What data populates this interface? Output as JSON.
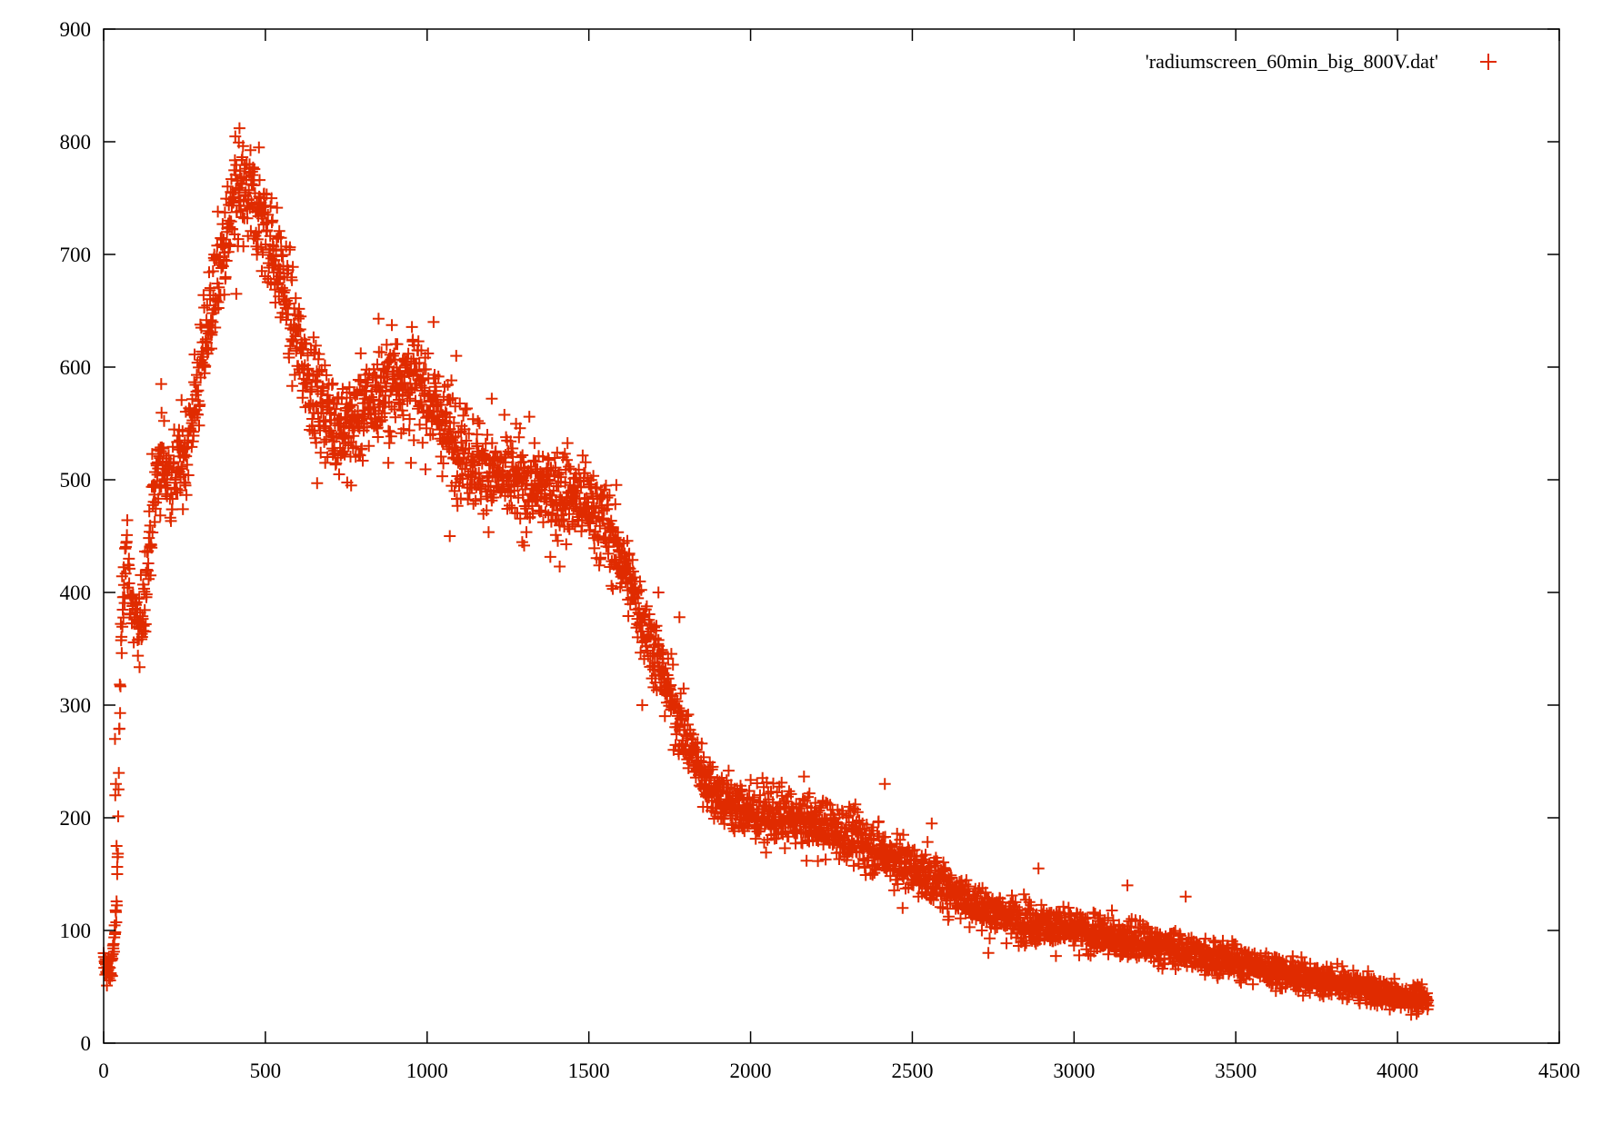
{
  "chart_data": {
    "type": "scatter",
    "title": "",
    "xlabel": "",
    "ylabel": "",
    "xlim": [
      0,
      4500
    ],
    "ylim": [
      0,
      900
    ],
    "xticks": [
      0,
      500,
      1000,
      1500,
      2000,
      2500,
      3000,
      3500,
      4000,
      4500
    ],
    "yticks": [
      0,
      100,
      200,
      300,
      400,
      500,
      600,
      700,
      800,
      900
    ],
    "grid": false,
    "legend_position": "top-right",
    "marker": "plus",
    "color": "#e02b00",
    "series": [
      {
        "name": "'radiumscreen_60min_big_800V.dat'",
        "point_count": 4096,
        "profile": [
          [
            0,
            70
          ],
          [
            20,
            60
          ],
          [
            40,
            110
          ],
          [
            50,
            300
          ],
          [
            60,
            410
          ],
          [
            70,
            440
          ],
          [
            90,
            380
          ],
          [
            110,
            360
          ],
          [
            130,
            410
          ],
          [
            150,
            470
          ],
          [
            175,
            520
          ],
          [
            210,
            500
          ],
          [
            250,
            520
          ],
          [
            290,
            580
          ],
          [
            330,
            650
          ],
          [
            370,
            700
          ],
          [
            410,
            750
          ],
          [
            450,
            750
          ],
          [
            500,
            725
          ],
          [
            550,
            680
          ],
          [
            600,
            620
          ],
          [
            650,
            580
          ],
          [
            700,
            555
          ],
          [
            750,
            545
          ],
          [
            800,
            560
          ],
          [
            850,
            575
          ],
          [
            900,
            590
          ],
          [
            950,
            590
          ],
          [
            1000,
            575
          ],
          [
            1050,
            550
          ],
          [
            1100,
            530
          ],
          [
            1150,
            515
          ],
          [
            1200,
            505
          ],
          [
            1250,
            500
          ],
          [
            1300,
            495
          ],
          [
            1350,
            492
          ],
          [
            1400,
            490
          ],
          [
            1450,
            485
          ],
          [
            1500,
            478
          ],
          [
            1550,
            460
          ],
          [
            1600,
            430
          ],
          [
            1650,
            390
          ],
          [
            1700,
            350
          ],
          [
            1750,
            310
          ],
          [
            1800,
            270
          ],
          [
            1850,
            240
          ],
          [
            1900,
            220
          ],
          [
            1950,
            210
          ],
          [
            2000,
            205
          ],
          [
            2100,
            200
          ],
          [
            2200,
            195
          ],
          [
            2300,
            185
          ],
          [
            2400,
            170
          ],
          [
            2500,
            155
          ],
          [
            2600,
            140
          ],
          [
            2700,
            122
          ],
          [
            2800,
            112
          ],
          [
            2900,
            105
          ],
          [
            3000,
            100
          ],
          [
            3100,
            95
          ],
          [
            3200,
            90
          ],
          [
            3300,
            84
          ],
          [
            3400,
            78
          ],
          [
            3500,
            72
          ],
          [
            3600,
            66
          ],
          [
            3700,
            60
          ],
          [
            3800,
            54
          ],
          [
            3900,
            48
          ],
          [
            4000,
            42
          ],
          [
            4095,
            38
          ]
        ],
        "outliers": [
          [
            35,
            270
          ],
          [
            38,
            230
          ],
          [
            36,
            220
          ],
          [
            40,
            175
          ],
          [
            42,
            150
          ],
          [
            178,
            585
          ],
          [
            420,
            812
          ],
          [
            480,
            795
          ],
          [
            410,
            665
          ],
          [
            660,
            497
          ],
          [
            765,
            495
          ],
          [
            850,
            643
          ],
          [
            880,
            515
          ],
          [
            950,
            515
          ],
          [
            1020,
            640
          ],
          [
            1090,
            610
          ],
          [
            1070,
            450
          ],
          [
            1410,
            423
          ],
          [
            1715,
            400
          ],
          [
            1780,
            378
          ],
          [
            1665,
            300
          ],
          [
            2415,
            230
          ],
          [
            2470,
            120
          ],
          [
            2560,
            195
          ],
          [
            2735,
            80
          ],
          [
            2890,
            155
          ],
          [
            3165,
            140
          ],
          [
            3345,
            130
          ],
          [
            3930,
            55
          ],
          [
            1200,
            572
          ]
        ]
      }
    ]
  }
}
